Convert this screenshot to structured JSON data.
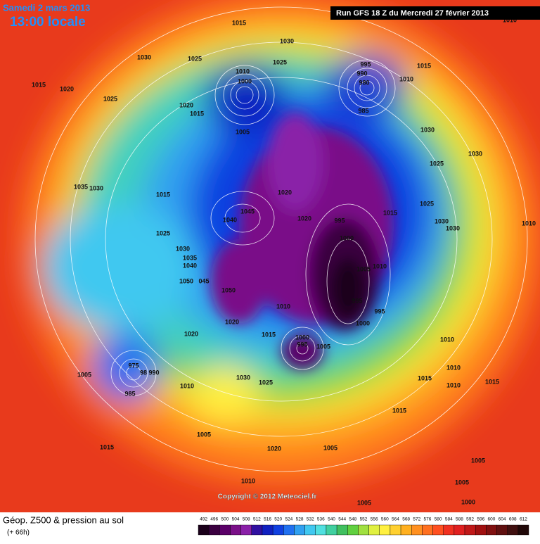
{
  "header": {
    "date": "Samedi 2 mars 2013",
    "time": "13:00 locale",
    "run": "Run GFS 18 Z du Mercredi 27 février 2013"
  },
  "pressure_labels": [
    "1015",
    "1030",
    "1030",
    "1025",
    "1025",
    "1015",
    "1015",
    "1020",
    "1025",
    "1010",
    "1000",
    "995",
    "990",
    "980",
    "1010",
    "985",
    "1020",
    "1015",
    "1005",
    "1030",
    "1030",
    "1025",
    "1035",
    "1030",
    "1015",
    "1020",
    "1045",
    "1040",
    "1020",
    "995",
    "1015",
    "1025",
    "1030",
    "1030",
    "1010",
    "1025",
    "1000",
    "1030",
    "1035",
    "1040",
    "1005",
    "1010",
    "1050",
    "045",
    "1050",
    "995",
    "1010",
    "995",
    "1020",
    "1000",
    "1020",
    "1015",
    "1000",
    "995",
    "1005",
    "1010",
    "975",
    "98",
    "990",
    "1005",
    "1010",
    "1030",
    "1025",
    "1015",
    "1010",
    "1015",
    "1010",
    "985",
    "1015",
    "1005",
    "1015",
    "1020",
    "1005",
    "1005",
    "1010",
    "1005",
    "1000",
    "1005",
    "1010"
  ],
  "copyright": "Copyright © 2012 Meteociel.fr",
  "footer": {
    "title": "Géop. Z500 & pression au sol",
    "lead": "(+ 66h)"
  },
  "legend": [
    {
      "label": 492,
      "color": "#1a001a"
    },
    {
      "label": 496,
      "color": "#3a0040"
    },
    {
      "label": 500,
      "color": "#5a0068"
    },
    {
      "label": 504,
      "color": "#7a1088"
    },
    {
      "label": 508,
      "color": "#8a20a8"
    },
    {
      "label": 512,
      "color": "#3010a0"
    },
    {
      "label": 516,
      "color": "#1020c0"
    },
    {
      "label": 520,
      "color": "#1040e0"
    },
    {
      "label": 524,
      "color": "#2070f0"
    },
    {
      "label": 528,
      "color": "#30a0f0"
    },
    {
      "label": 532,
      "color": "#40c8f0"
    },
    {
      "label": 536,
      "color": "#50e0e0"
    },
    {
      "label": 540,
      "color": "#40d0a0"
    },
    {
      "label": 544,
      "color": "#40c060"
    },
    {
      "label": 548,
      "color": "#60d040"
    },
    {
      "label": 552,
      "color": "#a0e040"
    },
    {
      "label": 556,
      "color": "#e0f040"
    },
    {
      "label": 560,
      "color": "#fff040"
    },
    {
      "label": 564,
      "color": "#ffd030"
    },
    {
      "label": 568,
      "color": "#ffb020"
    },
    {
      "label": 572,
      "color": "#ff9020"
    },
    {
      "label": 576,
      "color": "#ff7020"
    },
    {
      "label": 580,
      "color": "#ff5020"
    },
    {
      "label": 584,
      "color": "#f03020"
    },
    {
      "label": 588,
      "color": "#e02020"
    },
    {
      "label": 592,
      "color": "#c01818"
    },
    {
      "label": 596,
      "color": "#a01010"
    },
    {
      "label": 600,
      "color": "#801010"
    },
    {
      "label": 604,
      "color": "#601010"
    },
    {
      "label": 608,
      "color": "#401010"
    },
    {
      "label": 612,
      "color": "#200808"
    }
  ]
}
